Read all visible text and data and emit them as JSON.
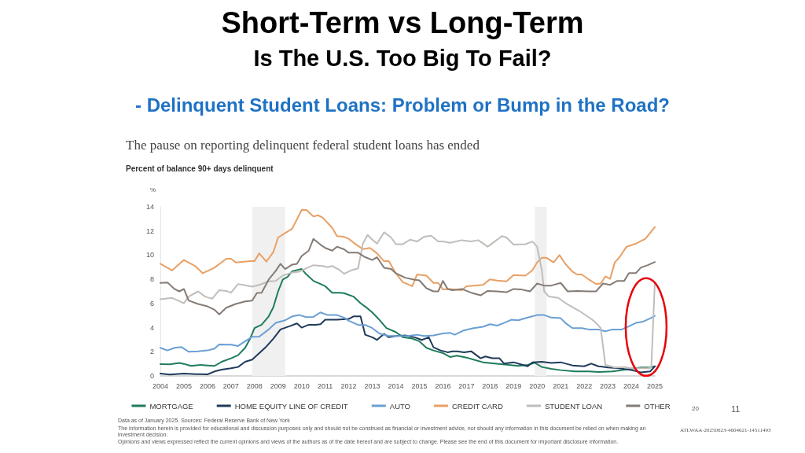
{
  "chart_data": {
    "type": "line",
    "title": "Short-Term vs Long-Term",
    "subtitle": "Is The U.S. Too Big To Fail?",
    "ylabel": "%",
    "annotations": [
      "-  Delinquent Student Loans: Problem or Bump in the Road?",
      "The pause on reporting delinquent federal student loans has ended",
      "Percent of balance 90+ days delinquent",
      "Data as of January 2025. Sources: Federal Reserve Bank of New York",
      "The information herein is provided for educational and discussion purposes only and should not be construed as financial or investment advice, nor should any information in this document be relied on when making an investment decision.",
      "Opinions and views expressed reflect the current opinions and views of the authors as of the date hereof and are subject to change. Please see the end of this document for important disclosure information.",
      "ATLWAA-20250623-4604621-14511493",
      "20",
      "11"
    ],
    "xlim": [
      2004,
      2025
    ],
    "xticks": [
      2004,
      2005,
      2006,
      2007,
      2008,
      2009,
      2010,
      2011,
      2012,
      2013,
      2014,
      2015,
      2016,
      2017,
      2018,
      2019,
      2020,
      2021,
      2022,
      2023,
      2024,
      2025
    ],
    "ylim": [
      0,
      14
    ],
    "yticks": [
      0,
      2,
      4,
      6,
      8,
      10,
      12,
      14
    ],
    "grid": false,
    "legend": "bottom",
    "marker": "none",
    "line_style": "solid",
    "bands": [
      {
        "axis": "x",
        "from": 2007.9,
        "to": 2009.3,
        "color": "#f0f0f0"
      },
      {
        "axis": "x",
        "from": 2019.9,
        "to": 2020.4,
        "color": "#f0f0f0"
      }
    ],
    "series": [
      {
        "name": "MORTGAGE",
        "color": "#1e7b5c",
        "x": [
          2004,
          2004.4,
          2004.8,
          2005,
          2005.3,
          2005.7,
          2006,
          2006.3,
          2006.6,
          2007,
          2007.3,
          2007.6,
          2007.8,
          2008,
          2008.3,
          2008.6,
          2008.8,
          2009,
          2009.2,
          2009.4,
          2009.6,
          2010,
          2010.2,
          2010.5,
          2010.8,
          2011,
          2011.3,
          2011.6,
          2011.8,
          2012.2,
          2012.5,
          2012.8,
          2013,
          2013.3,
          2013.6,
          2014,
          2014.3,
          2014.7,
          2015,
          2015.3,
          2015.6,
          2016,
          2016.3,
          2016.6,
          2017,
          2017.3,
          2017.7,
          2018.2,
          2018.8,
          2019.2,
          2019.6,
          2019.9,
          2020.2,
          2020.6,
          2021,
          2021.6,
          2022.2,
          2022.6,
          2023.2,
          2023.8,
          2024.4,
          2024.8,
          2025
        ],
        "values": [
          0.98,
          0.96,
          1.07,
          1.0,
          0.83,
          0.91,
          0.87,
          0.83,
          1.17,
          1.46,
          1.72,
          2.33,
          3.04,
          3.96,
          4.24,
          4.93,
          5.7,
          7.0,
          7.98,
          8.2,
          8.67,
          8.85,
          8.41,
          7.87,
          7.61,
          7.43,
          6.89,
          6.89,
          6.85,
          6.57,
          6.02,
          5.59,
          5.26,
          4.65,
          3.96,
          3.63,
          3.2,
          3.09,
          2.87,
          2.33,
          2.11,
          1.89,
          1.57,
          1.67,
          1.52,
          1.35,
          1.13,
          1.02,
          0.91,
          0.83,
          0.91,
          1.09,
          0.74,
          0.59,
          0.48,
          0.37,
          0.37,
          0.33,
          0.37,
          0.54,
          0.7,
          0.7,
          0.8
        ]
      },
      {
        "name": "HOME EQUITY LINE OF CREDIT",
        "color": "#1f3a5a",
        "x": [
          2004,
          2004.4,
          2005,
          2005.5,
          2006,
          2006.3,
          2006.6,
          2007,
          2007.3,
          2007.6,
          2007.9,
          2008.2,
          2008.5,
          2008.8,
          2009.1,
          2009.5,
          2009.8,
          2010,
          2010.3,
          2010.6,
          2010.8,
          2011,
          2011.5,
          2012,
          2012.2,
          2012.5,
          2012.7,
          2013,
          2013.2,
          2013.5,
          2013.7,
          2014,
          2014.4,
          2014.8,
          2015.1,
          2015.4,
          2015.6,
          2015.9,
          2016.2,
          2016.4,
          2016.6,
          2016.9,
          2017.2,
          2017.6,
          2017.8,
          2018.1,
          2018.4,
          2018.6,
          2019,
          2019.3,
          2019.6,
          2019.8,
          2020.2,
          2020.6,
          2021,
          2021.5,
          2022,
          2022.3,
          2022.6,
          2023,
          2023.5,
          2024,
          2024.4,
          2024.8,
          2025
        ],
        "values": [
          0.2,
          0.11,
          0.2,
          0.15,
          0.13,
          0.37,
          0.52,
          0.63,
          0.74,
          1.17,
          1.35,
          1.89,
          2.43,
          3.09,
          3.85,
          4.13,
          4.35,
          4.0,
          4.24,
          4.24,
          4.28,
          4.65,
          4.65,
          4.72,
          4.93,
          4.93,
          3.41,
          3.2,
          2.98,
          3.48,
          3.2,
          3.3,
          3.35,
          3.2,
          2.98,
          3.2,
          2.37,
          2.11,
          1.96,
          2.04,
          2.04,
          1.96,
          2.04,
          1.46,
          1.61,
          1.46,
          1.46,
          1.02,
          1.13,
          0.96,
          0.8,
          1.13,
          1.17,
          1.07,
          1.13,
          0.87,
          0.8,
          1.02,
          0.8,
          0.7,
          0.63,
          0.48,
          0.3,
          0.37,
          0.8
        ]
      },
      {
        "name": "AUTO",
        "color": "#6a9fd4",
        "x": [
          2004,
          2004.3,
          2004.6,
          2004.9,
          2005.2,
          2005.6,
          2006,
          2006.3,
          2006.5,
          2007,
          2007.3,
          2007.6,
          2007.9,
          2008.2,
          2008.6,
          2008.9,
          2009.3,
          2009.6,
          2009.9,
          2010.2,
          2010.5,
          2010.8,
          2011.1,
          2011.5,
          2011.8,
          2012,
          2012.4,
          2012.7,
          2013,
          2013.3,
          2013.7,
          2014,
          2014.5,
          2014.9,
          2015.2,
          2015.6,
          2016,
          2016.3,
          2016.5,
          2016.9,
          2017.3,
          2017.7,
          2018,
          2018.3,
          2018.6,
          2018.9,
          2019.2,
          2019.6,
          2020,
          2020.3,
          2020.6,
          2021,
          2021.2,
          2021.5,
          2021.9,
          2022.2,
          2022.6,
          2022.9,
          2023.2,
          2023.6,
          2023.9,
          2024.2,
          2024.5,
          2024.8,
          2025
        ],
        "values": [
          2.33,
          2.11,
          2.33,
          2.39,
          2.0,
          2.04,
          2.11,
          2.26,
          2.61,
          2.59,
          2.48,
          2.87,
          3.24,
          3.26,
          3.85,
          4.39,
          4.61,
          4.93,
          5.04,
          4.87,
          4.89,
          5.26,
          5.04,
          5.04,
          4.83,
          4.57,
          4.22,
          4.22,
          3.96,
          3.52,
          3.3,
          3.3,
          3.3,
          3.41,
          3.3,
          3.35,
          3.52,
          3.57,
          3.41,
          3.78,
          3.96,
          4.07,
          4.28,
          4.17,
          4.39,
          4.65,
          4.61,
          4.83,
          5.04,
          5.04,
          4.83,
          4.78,
          4.39,
          3.96,
          3.96,
          3.85,
          3.85,
          3.7,
          3.85,
          3.85,
          4.11,
          4.39,
          4.5,
          4.76,
          4.98
        ]
      },
      {
        "name": "CREDIT CARD",
        "color": "#e8a065",
        "x": [
          2004,
          2004.5,
          2005,
          2005.5,
          2005.8,
          2006.3,
          2006.8,
          2007,
          2007.2,
          2007.8,
          2008,
          2008.2,
          2008.5,
          2008.8,
          2009,
          2009.3,
          2009.6,
          2010,
          2010.2,
          2010.5,
          2010.7,
          2010.9,
          2011.3,
          2011.5,
          2011.8,
          2012,
          2012.3,
          2012.6,
          2012.9,
          2013.2,
          2013.5,
          2013.7,
          2014,
          2014.3,
          2014.7,
          2014.9,
          2015.3,
          2015.6,
          2015.8,
          2016,
          2016.3,
          2016.8,
          2017,
          2017.7,
          2018,
          2018.3,
          2018.7,
          2019,
          2019.5,
          2019.8,
          2020,
          2020.2,
          2020.4,
          2020.7,
          2020.95,
          2021.2,
          2021.5,
          2021.7,
          2021.9,
          2022.2,
          2022.5,
          2022.7,
          2022.9,
          2023.1,
          2023.3,
          2023.5,
          2023.8,
          2024.2,
          2024.6,
          2025
        ],
        "values": [
          9.28,
          8.74,
          9.6,
          9.07,
          8.5,
          8.96,
          9.7,
          9.7,
          9.4,
          9.5,
          9.5,
          10.15,
          9.46,
          10.26,
          11.46,
          11.83,
          12.2,
          13.74,
          13.74,
          13.2,
          13.3,
          13.1,
          12.26,
          11.57,
          11.52,
          11.35,
          10.9,
          10.5,
          10.6,
          10.15,
          9.5,
          9.5,
          8.5,
          7.76,
          7.43,
          8.4,
          8.3,
          7.7,
          7.7,
          7.17,
          7.2,
          7.1,
          7.43,
          7.54,
          8.0,
          7.9,
          7.83,
          8.35,
          8.3,
          8.74,
          9.4,
          9.78,
          9.78,
          9.4,
          10.0,
          9.28,
          8.63,
          8.4,
          8.4,
          7.98,
          7.6,
          7.65,
          8.24,
          8.04,
          9.4,
          9.83,
          10.7,
          10.96,
          11.35,
          12.33
        ]
      },
      {
        "name": "STUDENT LOAN",
        "color": "#c0bdba",
        "x": [
          2004,
          2004.5,
          2005,
          2005.2,
          2005.6,
          2005.9,
          2006.2,
          2006.5,
          2006.8,
          2007,
          2007.3,
          2007.6,
          2007.9,
          2008.2,
          2008.6,
          2008.9,
          2009.2,
          2009.6,
          2009.9,
          2010.2,
          2010.5,
          2010.9,
          2011.1,
          2011.3,
          2011.6,
          2011.8,
          2012.1,
          2012.4,
          2012.6,
          2012.8,
          2013,
          2013.2,
          2013.5,
          2013.8,
          2014,
          2014.3,
          2014.6,
          2014.9,
          2015.2,
          2015.5,
          2015.8,
          2016,
          2016.3,
          2016.8,
          2017.2,
          2017.5,
          2017.9,
          2018.2,
          2018.5,
          2018.7,
          2019,
          2019.5,
          2019.8,
          2020,
          2020.2,
          2020.3,
          2020.5,
          2020.9,
          2021.3,
          2021.8,
          2022.3,
          2022.5,
          2022.7,
          2022.9,
          2023.3,
          2023.7,
          2024,
          2024.3,
          2024.7,
          2024.85,
          2025
        ],
        "values": [
          6.35,
          6.46,
          6.02,
          6.57,
          7.0,
          6.57,
          6.39,
          7.1,
          7.04,
          6.89,
          7.61,
          7.5,
          7.39,
          7.54,
          7.83,
          7.87,
          8.3,
          8.57,
          8.63,
          8.91,
          9.17,
          9.1,
          9.0,
          9.1,
          8.78,
          8.46,
          8.74,
          8.91,
          10.96,
          11.67,
          11.28,
          10.96,
          11.89,
          11.46,
          10.91,
          10.91,
          11.28,
          11.13,
          11.52,
          11.61,
          11.13,
          11.13,
          11.02,
          11.24,
          11.13,
          11.24,
          10.7,
          11.13,
          11.57,
          11.46,
          10.87,
          10.91,
          11.13,
          10.7,
          8.74,
          7.0,
          6.57,
          6.46,
          5.91,
          5.37,
          4.72,
          4.39,
          3.96,
          0.91,
          0.7,
          0.74,
          0.63,
          0.63,
          0.63,
          0.7,
          7.76
        ]
      },
      {
        "name": "OTHER",
        "color": "#857b74",
        "x": [
          2004,
          2004.3,
          2004.6,
          2004.8,
          2005,
          2005.2,
          2005.6,
          2006,
          2006.3,
          2006.5,
          2006.8,
          2007.2,
          2007.6,
          2007.9,
          2008.1,
          2008.3,
          2008.6,
          2008.9,
          2009.1,
          2009.3,
          2009.6,
          2009.8,
          2010,
          2010.3,
          2010.5,
          2010.8,
          2011,
          2011.3,
          2011.5,
          2011.8,
          2012,
          2012.4,
          2012.7,
          2013,
          2013.2,
          2013.5,
          2013.8,
          2014,
          2014.4,
          2014.8,
          2015,
          2015.3,
          2015.6,
          2015.8,
          2016,
          2016.2,
          2016.4,
          2016.8,
          2017.2,
          2017.6,
          2017.9,
          2018.3,
          2018.7,
          2019,
          2019.3,
          2019.7,
          2020,
          2020.3,
          2020.6,
          2021,
          2021.3,
          2021.7,
          2022.2,
          2022.5,
          2022.8,
          2023.1,
          2023.4,
          2023.7,
          2023.9,
          2024.2,
          2024.4,
          2024.7,
          2025
        ],
        "values": [
          7.7,
          7.74,
          7.2,
          7.0,
          7.2,
          6.24,
          5.96,
          5.76,
          5.48,
          5.09,
          5.65,
          5.96,
          6.17,
          6.24,
          6.87,
          6.89,
          7.98,
          8.7,
          9.28,
          8.85,
          9.22,
          9.28,
          9.93,
          10.37,
          11.35,
          10.87,
          10.6,
          10.37,
          10.7,
          10.48,
          10.2,
          10.2,
          9.83,
          9.6,
          9.83,
          8.96,
          8.85,
          8.5,
          8.13,
          7.96,
          7.91,
          7.26,
          7.0,
          7.0,
          7.87,
          7.2,
          7.1,
          7.2,
          6.89,
          6.67,
          7.04,
          7.0,
          6.93,
          7.2,
          7.17,
          7.0,
          7.65,
          7.48,
          7.48,
          7.7,
          7.0,
          7.04,
          7.0,
          7.0,
          7.65,
          7.54,
          7.87,
          7.87,
          8.52,
          8.52,
          8.96,
          9.17,
          9.43
        ]
      }
    ]
  }
}
